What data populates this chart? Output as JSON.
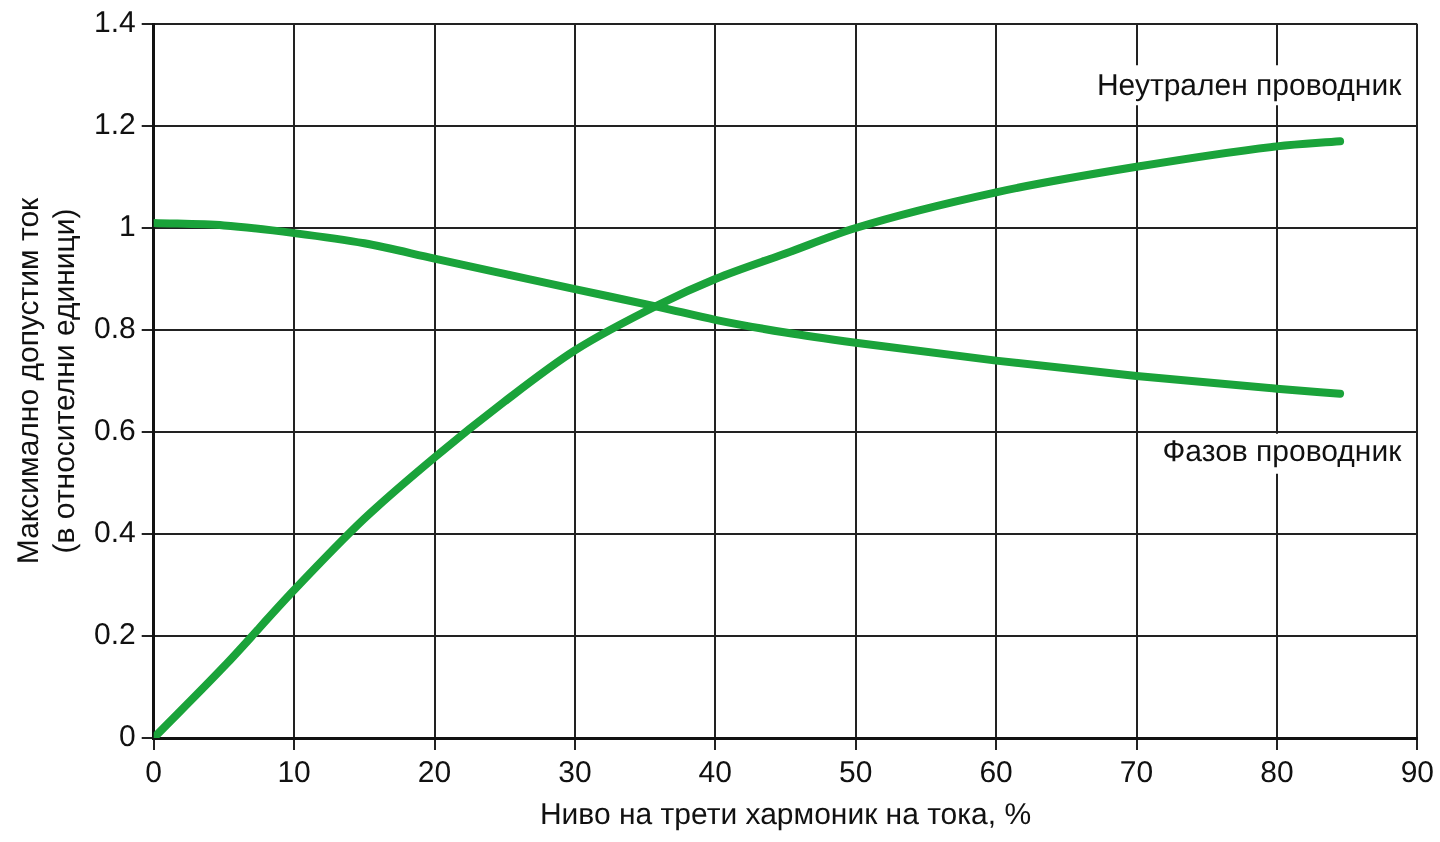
{
  "chart_data": {
    "type": "line",
    "xlabel": "Ниво на трети хармоник на тока, %",
    "ylabel": "Максимално допустим ток\n(в относителни единици)",
    "x": [
      0,
      5,
      10,
      15,
      20,
      25,
      30,
      36,
      40,
      45,
      50,
      60,
      70,
      80,
      84.5
    ],
    "series": [
      {
        "name": "Неутрален проводник",
        "color": "#1aa33a",
        "values": [
          0,
          0.14,
          0.29,
          0.43,
          0.55,
          0.66,
          0.76,
          0.85,
          0.9,
          0.95,
          1.0,
          1.07,
          1.12,
          1.16,
          1.17
        ]
      },
      {
        "name": "Фазов проводник",
        "color": "#1aa33a",
        "values": [
          1.01,
          1.005,
          0.99,
          0.97,
          0.94,
          0.91,
          0.88,
          0.845,
          0.82,
          0.795,
          0.775,
          0.74,
          0.71,
          0.685,
          0.675
        ]
      }
    ],
    "xlim": [
      0,
      90
    ],
    "xticks": [
      0,
      10,
      20,
      30,
      40,
      50,
      60,
      70,
      80,
      90
    ],
    "ylim": [
      0,
      1.4
    ],
    "yticks": [
      0,
      0.2,
      0.4,
      0.6,
      0.8,
      1,
      1.2,
      1.4
    ],
    "grid": true,
    "marker": "none",
    "line_style": "solid"
  }
}
